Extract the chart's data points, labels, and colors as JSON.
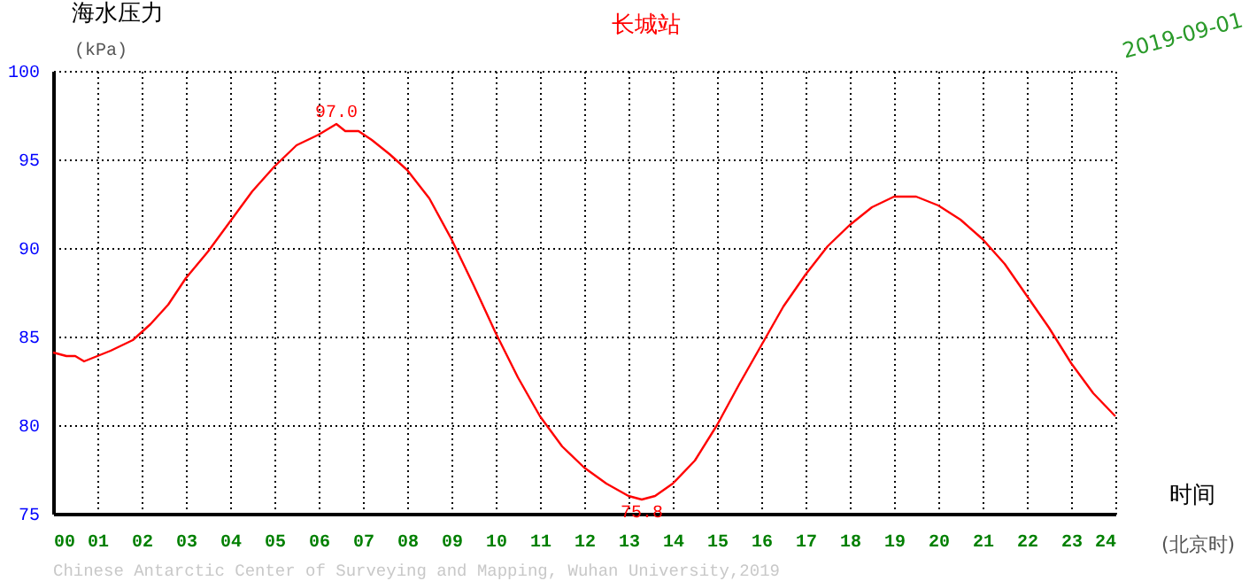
{
  "chart_data": {
    "type": "line",
    "title": "长城站",
    "ylabel": "海水压力",
    "xlabel": "时间",
    "annotations": [
      "(kPa)",
      "(北京时)",
      "2019-09-01",
      "Chinese Antarctic Center of Surveying and Mapping, Wuhan University,2019",
      {
        "text": "97.0",
        "x": 6.4,
        "y": 97.0
      },
      {
        "text": "75.8",
        "x": 13.3,
        "y": 75.8
      }
    ],
    "x": [
      0,
      0.3,
      0.5,
      0.7,
      1.0,
      1.3,
      1.8,
      2.2,
      2.6,
      3.0,
      3.5,
      4.0,
      4.5,
      5.0,
      5.5,
      6.0,
      6.4,
      6.6,
      6.9,
      7.2,
      7.6,
      8.0,
      8.5,
      9.0,
      9.5,
      10.0,
      10.5,
      11.0,
      11.5,
      12.0,
      12.5,
      13.0,
      13.3,
      13.6,
      14.0,
      14.5,
      15.0,
      15.5,
      16.0,
      16.5,
      17.0,
      17.5,
      18.0,
      18.5,
      19.0,
      19.5,
      20.0,
      20.5,
      21.0,
      21.5,
      22.0,
      22.5,
      23.0,
      23.5,
      24.0
    ],
    "series": [
      {
        "color": "#ff0000",
        "values": [
          84.1,
          83.9,
          83.9,
          83.6,
          83.9,
          84.2,
          84.8,
          85.7,
          86.8,
          88.3,
          89.8,
          91.5,
          93.2,
          94.6,
          95.8,
          96.4,
          97.0,
          96.6,
          96.6,
          96.1,
          95.3,
          94.4,
          92.8,
          90.5,
          87.9,
          85.2,
          82.7,
          80.5,
          78.8,
          77.6,
          76.7,
          76.0,
          75.8,
          76.0,
          76.7,
          78.0,
          80.0,
          82.3,
          84.5,
          86.7,
          88.5,
          90.1,
          91.3,
          92.3,
          92.9,
          92.9,
          92.4,
          91.6,
          90.5,
          89.1,
          87.3,
          85.5,
          83.5,
          81.8,
          80.5
        ]
      }
    ],
    "xlim": [
      0,
      24
    ],
    "xticks": [
      {
        "value": 0,
        "label": "00"
      },
      {
        "value": 1,
        "label": "01"
      },
      {
        "value": 2,
        "label": "02"
      },
      {
        "value": 3,
        "label": "03"
      },
      {
        "value": 4,
        "label": "04"
      },
      {
        "value": 5,
        "label": "05"
      },
      {
        "value": 6,
        "label": "06"
      },
      {
        "value": 7,
        "label": "07"
      },
      {
        "value": 8,
        "label": "08"
      },
      {
        "value": 9,
        "label": "09"
      },
      {
        "value": 10,
        "label": "10"
      },
      {
        "value": 11,
        "label": "11"
      },
      {
        "value": 12,
        "label": "12"
      },
      {
        "value": 13,
        "label": "13"
      },
      {
        "value": 14,
        "label": "14"
      },
      {
        "value": 15,
        "label": "15"
      },
      {
        "value": 16,
        "label": "16"
      },
      {
        "value": 17,
        "label": "17"
      },
      {
        "value": 18,
        "label": "18"
      },
      {
        "value": 19,
        "label": "19"
      },
      {
        "value": 20,
        "label": "20"
      },
      {
        "value": 21,
        "label": "21"
      },
      {
        "value": 22,
        "label": "22"
      },
      {
        "value": 23,
        "label": "23"
      },
      {
        "value": 24,
        "label": "24"
      }
    ],
    "ylim": [
      75,
      100
    ],
    "yticks": [
      75,
      80,
      85,
      90,
      95,
      100
    ],
    "grid": true,
    "line_style": "solid",
    "marker": "none"
  }
}
